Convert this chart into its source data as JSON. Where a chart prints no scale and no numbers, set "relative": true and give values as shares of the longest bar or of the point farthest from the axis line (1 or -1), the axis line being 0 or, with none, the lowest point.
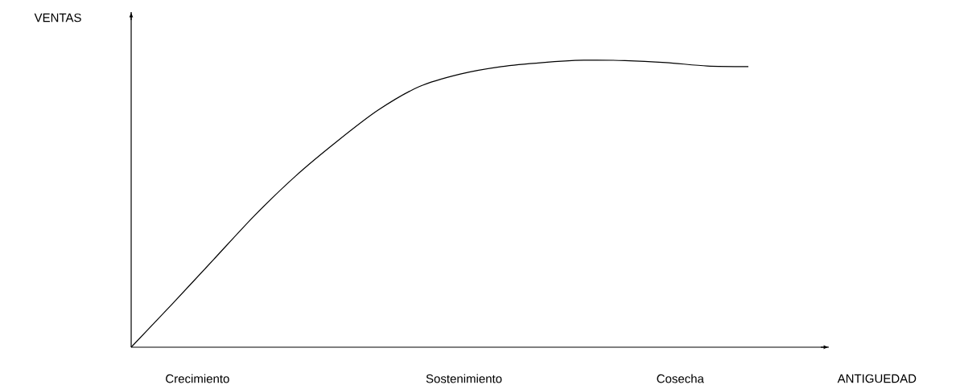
{
  "chart_data": {
    "type": "line",
    "relative": true,
    "color": "#000000",
    "ylabel": "VENTAS",
    "categories": [
      null,
      null,
      null,
      null,
      null,
      null,
      null,
      null,
      null,
      null,
      null,
      null,
      null,
      null,
      null,
      null
    ],
    "values": [
      0,
      0.151,
      0.305,
      0.459,
      0.597,
      0.717,
      0.826,
      0.908,
      0.952,
      0.978,
      0.992,
      1,
      0.999,
      0.992,
      0.98,
      0.978
    ],
    "annotations": [
      "Crecimiento",
      "Sostenimiento",
      "Cosecha",
      "ANTIGUEDAD"
    ]
  }
}
